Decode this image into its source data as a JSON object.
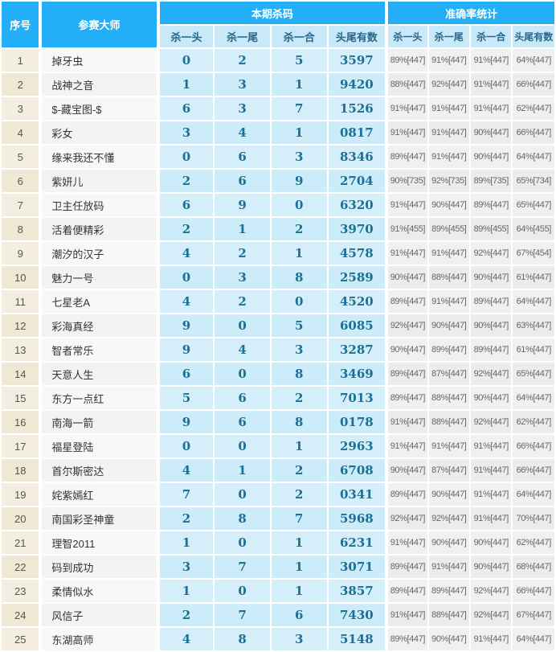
{
  "colors": {
    "header_blue": "#22AFF8",
    "subheader_bg": "#C9E9F8",
    "subheader_text": "#29678B",
    "kill_cell_bg": "#D5EFFA",
    "kill_text": "#1A7096",
    "serial_bg": "#F3EEDF",
    "stats_bg": "#F0F0EF",
    "stats_text": "#666666"
  },
  "table": {
    "headers": {
      "no": "序号",
      "master": "参赛大师",
      "kill_group": "本期杀码",
      "acc_group": "准确率统计",
      "kill_cols": [
        "杀一头",
        "杀一尾",
        "杀一合",
        "头尾有数"
      ],
      "acc_cols": [
        "杀一头",
        "杀一尾",
        "杀一合",
        "头尾有数"
      ]
    },
    "rows": [
      {
        "no": "1",
        "name": "掉牙虫",
        "kill": [
          "0",
          "2",
          "5",
          "3597"
        ],
        "acc": [
          "89%[447]",
          "91%[447]",
          "91%[447]",
          "64%[447]"
        ]
      },
      {
        "no": "2",
        "name": "战神之音",
        "kill": [
          "1",
          "3",
          "1",
          "9420"
        ],
        "acc": [
          "88%[447]",
          "92%[447]",
          "91%[447]",
          "66%[447]"
        ]
      },
      {
        "no": "3",
        "name": "$-藏宝图-$",
        "kill": [
          "6",
          "3",
          "7",
          "1526"
        ],
        "acc": [
          "91%[447]",
          "91%[447]",
          "91%[447]",
          "62%[447]"
        ]
      },
      {
        "no": "4",
        "name": "彩女",
        "kill": [
          "3",
          "4",
          "1",
          "0817"
        ],
        "acc": [
          "91%[447]",
          "91%[447]",
          "90%[447]",
          "66%[447]"
        ]
      },
      {
        "no": "5",
        "name": "缘来我还不懂",
        "kill": [
          "0",
          "6",
          "3",
          "8346"
        ],
        "acc": [
          "89%[447]",
          "91%[447]",
          "90%[447]",
          "64%[447]"
        ]
      },
      {
        "no": "6",
        "name": "紫妍儿",
        "kill": [
          "2",
          "6",
          "9",
          "2704"
        ],
        "acc": [
          "90%[735]",
          "92%[735]",
          "89%[735]",
          "65%[734]"
        ]
      },
      {
        "no": "7",
        "name": "卫主任放码",
        "kill": [
          "6",
          "9",
          "0",
          "6320"
        ],
        "acc": [
          "91%[447]",
          "90%[447]",
          "89%[447]",
          "65%[447]"
        ]
      },
      {
        "no": "8",
        "name": "活着便精彩",
        "kill": [
          "2",
          "1",
          "2",
          "3970"
        ],
        "acc": [
          "91%[455]",
          "89%[455]",
          "89%[455]",
          "64%[455]"
        ]
      },
      {
        "no": "9",
        "name": "潮汐的汉子",
        "kill": [
          "4",
          "2",
          "1",
          "4578"
        ],
        "acc": [
          "91%[447]",
          "91%[447]",
          "92%[447]",
          "67%[454]"
        ]
      },
      {
        "no": "10",
        "name": "魅力一号",
        "kill": [
          "0",
          "3",
          "8",
          "2589"
        ],
        "acc": [
          "90%[447]",
          "88%[447]",
          "90%[447]",
          "61%[447]"
        ]
      },
      {
        "no": "11",
        "name": "七星老A",
        "kill": [
          "4",
          "2",
          "0",
          "4520"
        ],
        "acc": [
          "89%[447]",
          "91%[447]",
          "89%[447]",
          "64%[447]"
        ]
      },
      {
        "no": "12",
        "name": "彩海真经",
        "kill": [
          "9",
          "0",
          "5",
          "6085"
        ],
        "acc": [
          "92%[447]",
          "90%[447]",
          "90%[447]",
          "63%[447]"
        ]
      },
      {
        "no": "13",
        "name": "智者常乐",
        "kill": [
          "9",
          "4",
          "3",
          "3287"
        ],
        "acc": [
          "90%[447]",
          "89%[447]",
          "89%[447]",
          "61%[447]"
        ]
      },
      {
        "no": "14",
        "name": "天意人生",
        "kill": [
          "6",
          "0",
          "8",
          "3469"
        ],
        "acc": [
          "89%[447]",
          "87%[447]",
          "92%[447]",
          "65%[447]"
        ]
      },
      {
        "no": "15",
        "name": "东方一点红",
        "kill": [
          "5",
          "6",
          "2",
          "7013"
        ],
        "acc": [
          "89%[447]",
          "88%[447]",
          "90%[447]",
          "64%[447]"
        ]
      },
      {
        "no": "16",
        "name": "南海一箭",
        "kill": [
          "9",
          "6",
          "8",
          "0178"
        ],
        "acc": [
          "91%[447]",
          "88%[447]",
          "92%[447]",
          "62%[447]"
        ]
      },
      {
        "no": "17",
        "name": "福星登陆",
        "kill": [
          "0",
          "0",
          "1",
          "2963"
        ],
        "acc": [
          "91%[447]",
          "91%[447]",
          "91%[447]",
          "66%[447]"
        ]
      },
      {
        "no": "18",
        "name": "首尔斯密达",
        "kill": [
          "4",
          "1",
          "2",
          "6708"
        ],
        "acc": [
          "90%[447]",
          "87%[447]",
          "91%[447]",
          "66%[447]"
        ]
      },
      {
        "no": "19",
        "name": "姹紫嫣红",
        "kill": [
          "7",
          "0",
          "2",
          "0341"
        ],
        "acc": [
          "89%[447]",
          "90%[447]",
          "91%[447]",
          "64%[447]"
        ]
      },
      {
        "no": "20",
        "name": "南国彩圣神童",
        "kill": [
          "2",
          "8",
          "7",
          "5968"
        ],
        "acc": [
          "92%[447]",
          "92%[447]",
          "91%[447]",
          "70%[447]"
        ]
      },
      {
        "no": "21",
        "name": "理智2011",
        "kill": [
          "1",
          "0",
          "1",
          "6231"
        ],
        "acc": [
          "91%[447]",
          "90%[447]",
          "90%[447]",
          "62%[447]"
        ]
      },
      {
        "no": "22",
        "name": "码到成功",
        "kill": [
          "3",
          "7",
          "1",
          "3071"
        ],
        "acc": [
          "89%[447]",
          "91%[447]",
          "90%[447]",
          "68%[447]"
        ]
      },
      {
        "no": "23",
        "name": "柔情似水",
        "kill": [
          "1",
          "0",
          "1",
          "3857"
        ],
        "acc": [
          "89%[447]",
          "89%[447]",
          "92%[447]",
          "66%[447]"
        ]
      },
      {
        "no": "24",
        "name": "风信子",
        "kill": [
          "2",
          "7",
          "6",
          "7430"
        ],
        "acc": [
          "91%[447]",
          "88%[447]",
          "92%[447]",
          "67%[447]"
        ]
      },
      {
        "no": "25",
        "name": "东湖高师",
        "kill": [
          "4",
          "8",
          "3",
          "5148"
        ],
        "acc": [
          "89%[447]",
          "90%[447]",
          "91%[447]",
          "64%[447]"
        ]
      }
    ]
  }
}
